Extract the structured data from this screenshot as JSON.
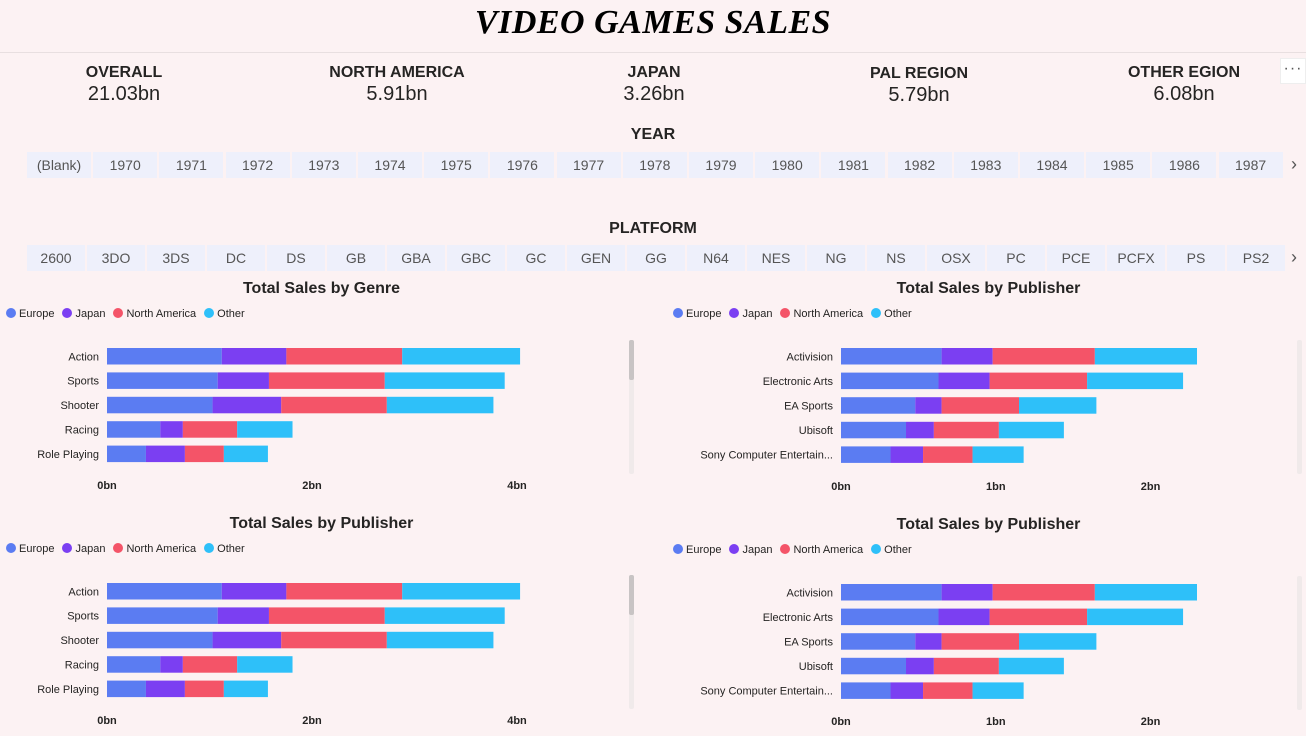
{
  "title": "VIDEO GAMES SALES",
  "kpis": [
    {
      "label": "OVERALL",
      "value": "21.03bn"
    },
    {
      "label": "NORTH AMERICA",
      "value": "5.91bn"
    },
    {
      "label": "JAPAN",
      "value": "3.26bn"
    },
    {
      "label": "PAL REGION",
      "value": "5.79bn"
    },
    {
      "label": "OTHER EGION",
      "value": "6.08bn"
    }
  ],
  "more_label": "···",
  "year_slicer": {
    "title": "YEAR",
    "items": [
      "(Blank)",
      "1970",
      "1971",
      "1972",
      "1973",
      "1974",
      "1975",
      "1976",
      "1977",
      "1978",
      "1979",
      "1980",
      "1981",
      "1982",
      "1983",
      "1984",
      "1985",
      "1986",
      "1987"
    ],
    "next_label": "›"
  },
  "platform_slicer": {
    "title": "PLATFORM",
    "items": [
      "2600",
      "3DO",
      "3DS",
      "DC",
      "DS",
      "GB",
      "GBA",
      "GBC",
      "GC",
      "GEN",
      "GG",
      "N64",
      "NES",
      "NG",
      "NS",
      "OSX",
      "PC",
      "PCE",
      "PCFX",
      "PS",
      "PS2"
    ],
    "next_label": "›"
  },
  "legend_colors": {
    "Europe": "#5b7cf2",
    "Japan": "#7b3ff2",
    "North America": "#f45468",
    "Other": "#2ec0f9"
  },
  "chart_data": [
    {
      "type": "bar",
      "orientation": "horizontal",
      "stacked": true,
      "title": "Total Sales by Genre",
      "categories": [
        "Action",
        "Sports",
        "Shooter",
        "Racing",
        "Role Playing"
      ],
      "series": [
        {
          "name": "Europe",
          "color": "#5b7cf2",
          "values": [
            1.12,
            1.08,
            1.03,
            0.52,
            0.38
          ]
        },
        {
          "name": "Japan",
          "color": "#7b3ff2",
          "values": [
            0.63,
            0.5,
            0.67,
            0.22,
            0.38
          ]
        },
        {
          "name": "North America",
          "color": "#f45468",
          "values": [
            1.13,
            1.13,
            1.03,
            0.53,
            0.38
          ]
        },
        {
          "name": "Other",
          "color": "#2ec0f9",
          "values": [
            1.15,
            1.17,
            1.04,
            0.54,
            0.43
          ]
        }
      ],
      "xlim": [
        0,
        4
      ],
      "xticks": [
        "0bn",
        "2bn",
        "4bn"
      ],
      "legend": "top-left"
    },
    {
      "type": "bar",
      "orientation": "horizontal",
      "stacked": true,
      "title": "Total Sales by Publisher",
      "categories": [
        "Activision",
        "Electronic Arts",
        "EA Sports",
        "Ubisoft",
        "Sony Computer Entertain..."
      ],
      "series": [
        {
          "name": "Europe",
          "color": "#5b7cf2",
          "values": [
            0.65,
            0.63,
            0.48,
            0.42,
            0.32
          ]
        },
        {
          "name": "Japan",
          "color": "#7b3ff2",
          "values": [
            0.33,
            0.33,
            0.17,
            0.18,
            0.21
          ]
        },
        {
          "name": "North America",
          "color": "#f45468",
          "values": [
            0.66,
            0.63,
            0.5,
            0.42,
            0.32
          ]
        },
        {
          "name": "Other",
          "color": "#2ec0f9",
          "values": [
            0.66,
            0.62,
            0.5,
            0.42,
            0.33
          ]
        }
      ],
      "xlim": [
        0,
        2.3
      ],
      "xticks": [
        "0bn",
        "1bn",
        "2bn"
      ],
      "legend": "top-left"
    },
    {
      "type": "bar",
      "orientation": "horizontal",
      "stacked": true,
      "title": "Total Sales by Publisher",
      "categories": [
        "Action",
        "Sports",
        "Shooter",
        "Racing",
        "Role Playing"
      ],
      "series": [
        {
          "name": "Europe",
          "color": "#5b7cf2",
          "values": [
            1.12,
            1.08,
            1.03,
            0.52,
            0.38
          ]
        },
        {
          "name": "Japan",
          "color": "#7b3ff2",
          "values": [
            0.63,
            0.5,
            0.67,
            0.22,
            0.38
          ]
        },
        {
          "name": "North America",
          "color": "#f45468",
          "values": [
            1.13,
            1.13,
            1.03,
            0.53,
            0.38
          ]
        },
        {
          "name": "Other",
          "color": "#2ec0f9",
          "values": [
            1.15,
            1.17,
            1.04,
            0.54,
            0.43
          ]
        }
      ],
      "xlim": [
        0,
        4
      ],
      "xticks": [
        "0bn",
        "2bn",
        "4bn"
      ],
      "legend": "top-left"
    },
    {
      "type": "bar",
      "orientation": "horizontal",
      "stacked": true,
      "title": "Total Sales by Publisher",
      "categories": [
        "Activision",
        "Electronic Arts",
        "EA Sports",
        "Ubisoft",
        "Sony Computer Entertain..."
      ],
      "series": [
        {
          "name": "Europe",
          "color": "#5b7cf2",
          "values": [
            0.65,
            0.63,
            0.48,
            0.42,
            0.32
          ]
        },
        {
          "name": "Japan",
          "color": "#7b3ff2",
          "values": [
            0.33,
            0.33,
            0.17,
            0.18,
            0.21
          ]
        },
        {
          "name": "North America",
          "color": "#f45468",
          "values": [
            0.66,
            0.63,
            0.5,
            0.42,
            0.32
          ]
        },
        {
          "name": "Other",
          "color": "#2ec0f9",
          "values": [
            0.66,
            0.62,
            0.5,
            0.42,
            0.33
          ]
        }
      ],
      "xlim": [
        0,
        2.3
      ],
      "xticks": [
        "0bn",
        "1bn",
        "2bn"
      ],
      "legend": "top-left"
    }
  ]
}
